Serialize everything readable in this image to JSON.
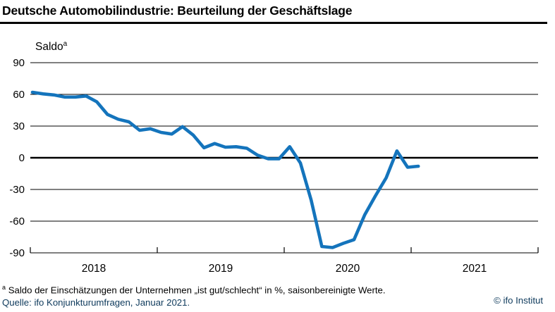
{
  "header": {
    "title": "Deutsche Automobilindustrie: Beurteilung der Geschäftslage"
  },
  "chart": {
    "axis_label": "Saldo",
    "axis_label_sup": "a"
  },
  "chart_data": {
    "type": "line",
    "title": "Deutsche Automobilindustrie: Beurteilung der Geschäftslage",
    "ylabel": "Saldo",
    "ylabel_superscript": "a",
    "x_interval": "monthly",
    "x_start": "2018-01",
    "x_end": "2021-01",
    "values": [
      62,
      60.5,
      59.5,
      57.5,
      57.5,
      58.5,
      53,
      41,
      36.5,
      34,
      26,
      27.5,
      24,
      22.5,
      29.5,
      21.5,
      9.5,
      13.5,
      10,
      10.5,
      9,
      2.5,
      -1,
      -1,
      10.5,
      -5,
      -40,
      -84,
      -85,
      -81,
      -77.5,
      -54,
      -36,
      -19,
      6.5,
      -9,
      -8
    ],
    "xticklabels": [
      "2018",
      "2019",
      "2020",
      "2021"
    ],
    "yticks": [
      90,
      60,
      30,
      0,
      -30,
      -60,
      -90
    ],
    "yticklabels": [
      "90",
      "60",
      "30",
      "0",
      "-30",
      "-60",
      "-90"
    ],
    "ylim": [
      -90,
      90
    ],
    "xlim_years": [
      2018,
      2022
    ],
    "grid": true,
    "legend": "none",
    "line_color": "#1474bc",
    "grid_color": "#000000",
    "zero_line_color": "#000000"
  },
  "footer": {
    "footnote_sup": "a",
    "footnote_text": "Saldo der Einschätzungen der Unternehmen „ist gut/schlecht“ in %, saisonbereinigte Werte.",
    "source": "Quelle: ifo Konjunkturumfragen, Januar 2021.",
    "copyright": "© ifo Institut"
  }
}
